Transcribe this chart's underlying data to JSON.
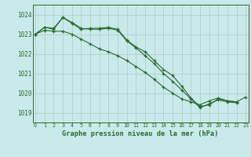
{
  "title": "Graphe pression niveau de la mer (hPa)",
  "x_hours": [
    0,
    1,
    2,
    3,
    4,
    5,
    6,
    7,
    8,
    9,
    10,
    11,
    12,
    13,
    14,
    15,
    16,
    17,
    18,
    19,
    20,
    21,
    22,
    23
  ],
  "line1": [
    1023.0,
    1023.35,
    1023.3,
    1023.85,
    1023.55,
    1023.25,
    1023.3,
    1023.3,
    1023.35,
    1023.25,
    1022.7,
    1022.35,
    1022.1,
    1021.65,
    1021.2,
    1020.9,
    1020.35,
    1019.75,
    1019.3,
    1019.4,
    1019.7,
    1019.6,
    1019.55,
    null
  ],
  "line2": [
    1023.0,
    1023.35,
    1023.25,
    1023.85,
    1023.6,
    1023.3,
    1023.25,
    1023.25,
    1023.3,
    1023.2,
    1022.65,
    1022.3,
    1021.9,
    1021.5,
    1021.0,
    1020.6,
    1020.15,
    1019.7,
    1019.25,
    1019.45,
    1019.65,
    1019.55,
    1019.5,
    null
  ],
  "line3": [
    1023.0,
    1023.2,
    1023.15,
    1023.15,
    1023.0,
    1022.75,
    1022.5,
    1022.25,
    1022.1,
    1021.9,
    1021.65,
    1021.35,
    1021.05,
    1020.7,
    1020.3,
    1020.0,
    1019.7,
    1019.55,
    1019.4,
    1019.6,
    1019.75,
    1019.6,
    1019.55,
    1019.8
  ],
  "ylim": [
    1018.5,
    1024.5
  ],
  "yticks": [
    1019,
    1020,
    1021,
    1022,
    1023,
    1024
  ],
  "bg_color": "#c8eaea",
  "grid_color": "#b0c8c8",
  "line_color": "#2d6a2d",
  "title_color": "#2d6a2d",
  "xlabel_bg": "#3a7a3a"
}
